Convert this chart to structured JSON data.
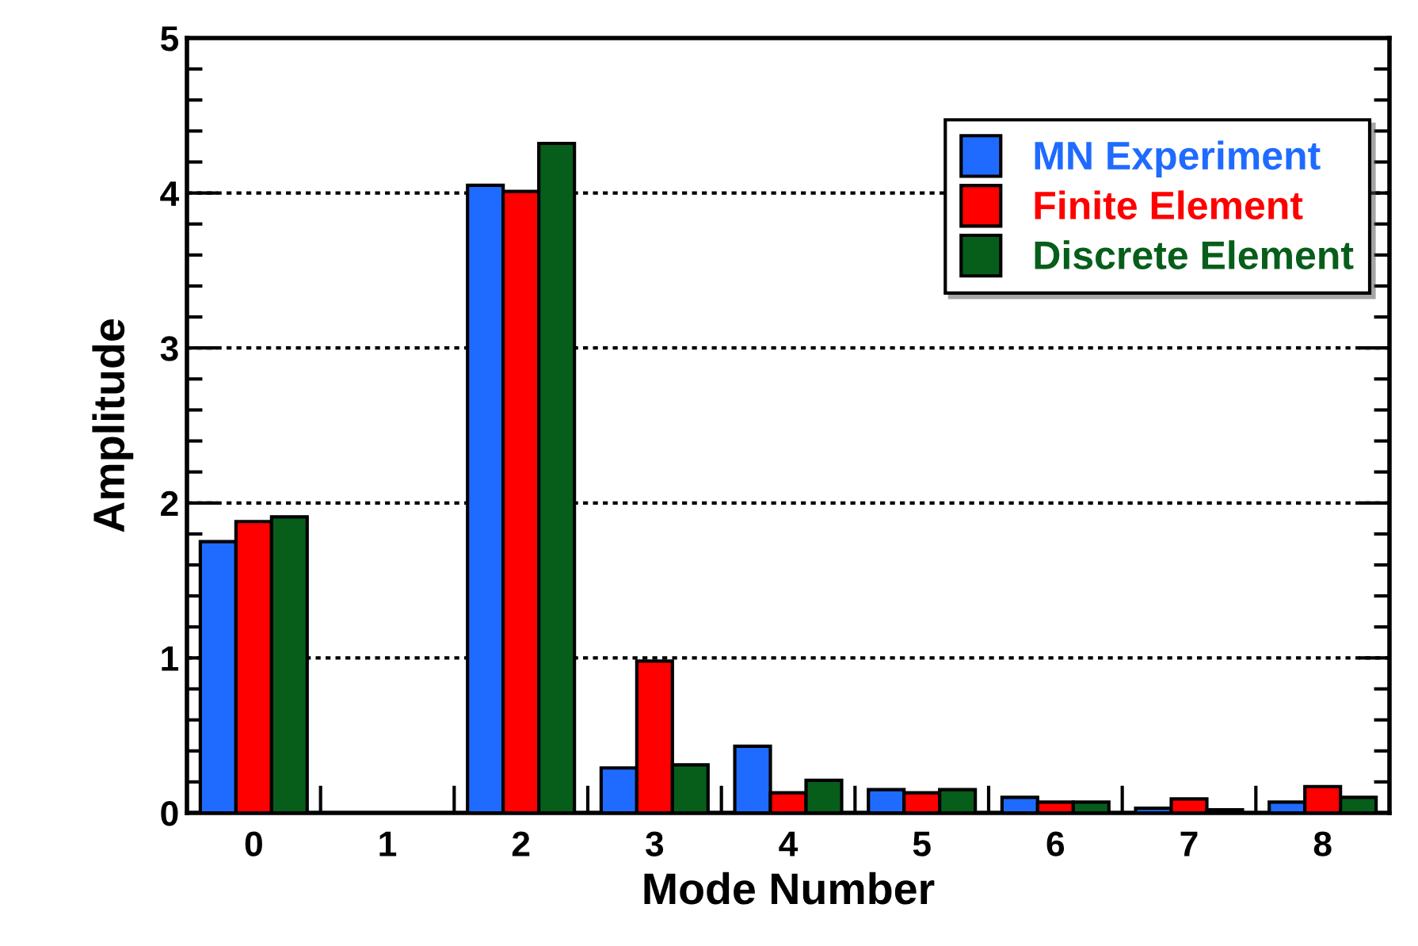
{
  "chart_data": {
    "type": "bar",
    "xlabel": "Mode Number",
    "ylabel": "Amplitude",
    "categories": [
      "0",
      "1",
      "2",
      "3",
      "4",
      "5",
      "6",
      "7",
      "8"
    ],
    "series": [
      {
        "name": "MN Experiment",
        "color": "#1f6bff",
        "values": [
          1.75,
          null,
          4.05,
          0.29,
          0.43,
          0.15,
          0.1,
          0.03,
          0.07
        ]
      },
      {
        "name": "Finite Element",
        "color": "#ff0000",
        "values": [
          1.88,
          null,
          4.01,
          0.98,
          0.13,
          0.13,
          0.07,
          0.09,
          0.17
        ]
      },
      {
        "name": "Discrete Element",
        "color": "#065e1a",
        "values": [
          1.91,
          null,
          4.32,
          0.31,
          0.21,
          0.15,
          0.07,
          0.02,
          0.1
        ]
      }
    ],
    "ylim": [
      0,
      5
    ],
    "yticks": [
      0,
      1,
      2,
      3,
      4,
      5
    ],
    "grid": "y",
    "legend": "top right"
  }
}
